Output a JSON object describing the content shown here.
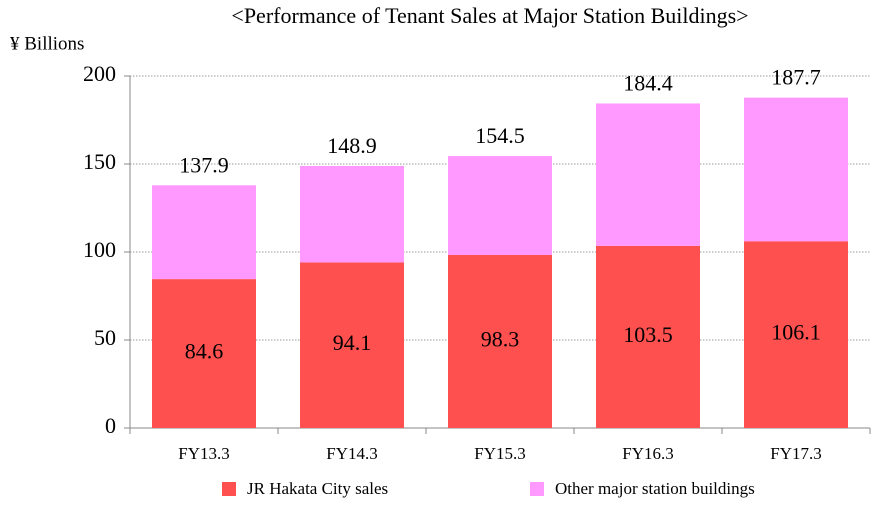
{
  "chart_data": {
    "type": "stacked_bar",
    "title": "<Performance of Tenant Sales at Major Station Buildings>",
    "y_label": "¥ Billions",
    "categories": [
      "FY13.3",
      "FY14.3",
      "FY15.3",
      "FY16.3",
      "FY17.3"
    ],
    "series": [
      {
        "name": "JR Hakata City sales",
        "color": "#ff5050",
        "values": [
          84.6,
          94.1,
          98.3,
          103.5,
          106.1
        ]
      },
      {
        "name": "Other major station buildings",
        "color": "#ff99ff",
        "values": [
          53.3,
          54.8,
          56.2,
          80.9,
          81.6
        ]
      }
    ],
    "totals": [
      137.9,
      148.9,
      154.5,
      184.4,
      187.7
    ],
    "ylim": [
      0,
      200
    ],
    "yticks": [
      0,
      50,
      100,
      150,
      200
    ],
    "grid": true
  }
}
